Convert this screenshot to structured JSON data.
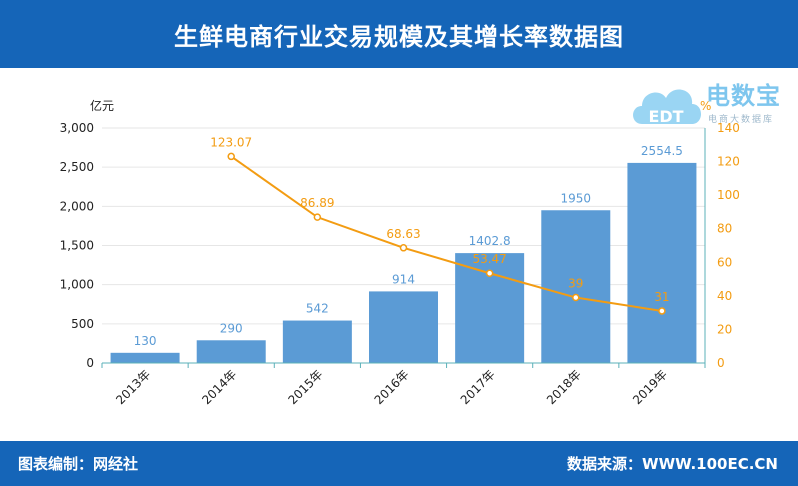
{
  "header": {
    "title": "生鲜电商行业交易规模及其增长率数据图"
  },
  "footer": {
    "left": "图表编制：网经社",
    "right": "数据来源：WWW.100EC.CN"
  },
  "logo": {
    "main": "电数宝",
    "sub": "电商大数据库",
    "mark": "EDT"
  },
  "colors": {
    "bar": "#5b9bd5",
    "line": "#f39c12",
    "header": "#1565b8",
    "axis_left": "#222222",
    "axis_right": "#f39c12"
  },
  "chart_data": {
    "type": "bar",
    "categories": [
      "2013年",
      "2014年",
      "2015年",
      "2016年",
      "2017年",
      "2018年",
      "2019年"
    ],
    "series": [
      {
        "values": [
          130,
          290,
          542,
          914,
          1402.8,
          1950,
          2554.5
        ],
        "labels": [
          "130",
          "290",
          "542",
          "914",
          "1402.8",
          "1950",
          "2554.5"
        ],
        "axis": "left"
      },
      {
        "type": "line",
        "values": [
          null,
          123.07,
          86.89,
          68.63,
          53.47,
          39,
          31
        ],
        "labels": [
          "",
          "123.07",
          "86.89",
          "68.63",
          "53.47",
          "39",
          "31"
        ],
        "axis": "right"
      }
    ],
    "ylabel_left": "亿元",
    "ylabel_right": "%",
    "ylim_left": [
      0,
      3000
    ],
    "ylim_right": [
      0,
      140
    ],
    "yticks_left": [
      "0",
      "500",
      "1,000",
      "1,500",
      "2,000",
      "2,500",
      "3,000"
    ],
    "yticks_right": [
      "0",
      "20",
      "40",
      "60",
      "80",
      "100",
      "120",
      "140"
    ],
    "grid": true
  }
}
